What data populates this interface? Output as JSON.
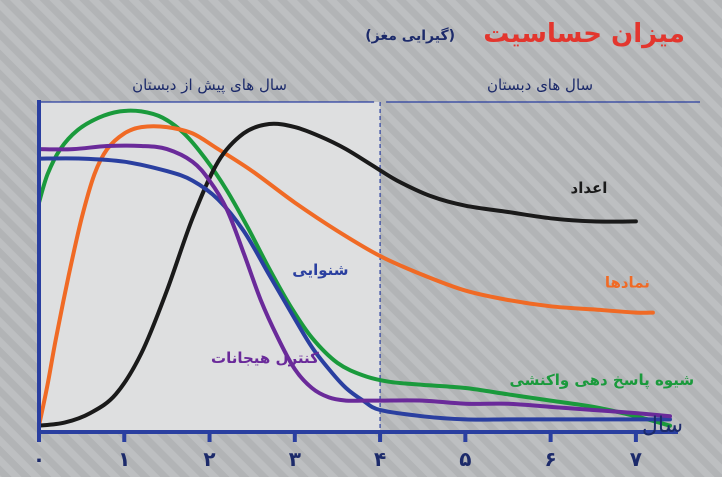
{
  "chart_data": {
    "type": "line",
    "title": "میزان حساسیت",
    "subtitle": "(گیرایی مغز)",
    "xlabel": "سال",
    "ylabel": "",
    "xlim": [
      0,
      7.4
    ],
    "ylim": [
      0,
      1.05
    ],
    "x_ticks": [
      0,
      1,
      2,
      3,
      4,
      5,
      6,
      7
    ],
    "x_tick_labels": [
      "۰",
      "۱",
      "۲",
      "۳",
      "۴",
      "۵",
      "۶",
      "۷"
    ],
    "grid": false,
    "periods": [
      {
        "label": "سال های پیش از دبستان",
        "range": [
          0,
          4
        ]
      },
      {
        "label": "سال های دبستان",
        "range": [
          4,
          7.4
        ]
      }
    ],
    "period_divider_x": 4,
    "series": [
      {
        "name": "شیوه پاسخ دهی واکنشی",
        "color": "#1a9a3c",
        "x": [
          0,
          0.1,
          0.25,
          0.45,
          0.7,
          0.95,
          1.2,
          1.45,
          1.7,
          1.95,
          2.2,
          2.45,
          2.7,
          2.95,
          3.2,
          3.5,
          3.8,
          4.1,
          4.5,
          5,
          5.5,
          6,
          6.5,
          7,
          7.4
        ],
        "values": [
          0.73,
          0.82,
          0.9,
          0.96,
          1.0,
          1.02,
          1.02,
          1.0,
          0.95,
          0.87,
          0.77,
          0.65,
          0.52,
          0.4,
          0.3,
          0.22,
          0.18,
          0.16,
          0.15,
          0.14,
          0.12,
          0.1,
          0.08,
          0.05,
          0.02
        ]
      },
      {
        "name": "نمادها",
        "color": "#f06a25",
        "x": [
          0,
          0.1,
          0.2,
          0.35,
          0.5,
          0.65,
          0.8,
          1.0,
          1.2,
          1.5,
          1.8,
          2.1,
          2.5,
          3.0,
          3.5,
          4.0,
          4.5,
          5.0,
          5.5,
          6.0,
          6.5,
          7.0,
          7.2
        ],
        "values": [
          0.02,
          0.15,
          0.3,
          0.5,
          0.68,
          0.82,
          0.9,
          0.95,
          0.97,
          0.97,
          0.95,
          0.9,
          0.83,
          0.73,
          0.64,
          0.56,
          0.5,
          0.45,
          0.42,
          0.4,
          0.39,
          0.38,
          0.38
        ]
      },
      {
        "name": "اعداد",
        "color": "#1a1a1a",
        "x": [
          0,
          0.3,
          0.6,
          0.9,
          1.2,
          1.5,
          1.8,
          2.1,
          2.4,
          2.7,
          3.0,
          3.3,
          3.6,
          3.9,
          4.2,
          4.6,
          5.0,
          5.5,
          6.0,
          6.5,
          7.0
        ],
        "values": [
          0.02,
          0.03,
          0.06,
          0.12,
          0.25,
          0.45,
          0.68,
          0.86,
          0.95,
          0.98,
          0.97,
          0.94,
          0.9,
          0.85,
          0.8,
          0.75,
          0.72,
          0.7,
          0.68,
          0.67,
          0.67
        ]
      },
      {
        "name": "شنوایی",
        "color": "#2a3fa0",
        "x": [
          0,
          0.5,
          1.0,
          1.5,
          1.8,
          2.1,
          2.4,
          2.7,
          3.0,
          3.2,
          3.4,
          3.6,
          3.8,
          4.0,
          4.5,
          5.0,
          5.5,
          6.0,
          6.5,
          7.0,
          7.4
        ],
        "values": [
          0.87,
          0.87,
          0.86,
          0.83,
          0.8,
          0.74,
          0.64,
          0.5,
          0.36,
          0.27,
          0.2,
          0.14,
          0.1,
          0.07,
          0.05,
          0.04,
          0.04,
          0.04,
          0.04,
          0.04,
          0.04
        ]
      },
      {
        "name": "کنترل هیجانات",
        "color": "#6a2a9a",
        "x": [
          0,
          0.4,
          0.8,
          1.2,
          1.5,
          1.8,
          2.0,
          2.2,
          2.4,
          2.6,
          2.8,
          3.0,
          3.2,
          3.4,
          3.6,
          3.8,
          4.0,
          4.5,
          5.0,
          5.5,
          6.0,
          6.5,
          7.0,
          7.4
        ],
        "values": [
          0.9,
          0.9,
          0.91,
          0.91,
          0.9,
          0.86,
          0.8,
          0.71,
          0.57,
          0.42,
          0.3,
          0.2,
          0.14,
          0.11,
          0.1,
          0.1,
          0.1,
          0.1,
          0.09,
          0.09,
          0.08,
          0.07,
          0.06,
          0.05
        ]
      },
      {
        "name": "",
        "color": "#1a9a3c",
        "x": [],
        "values": []
      }
    ]
  }
}
